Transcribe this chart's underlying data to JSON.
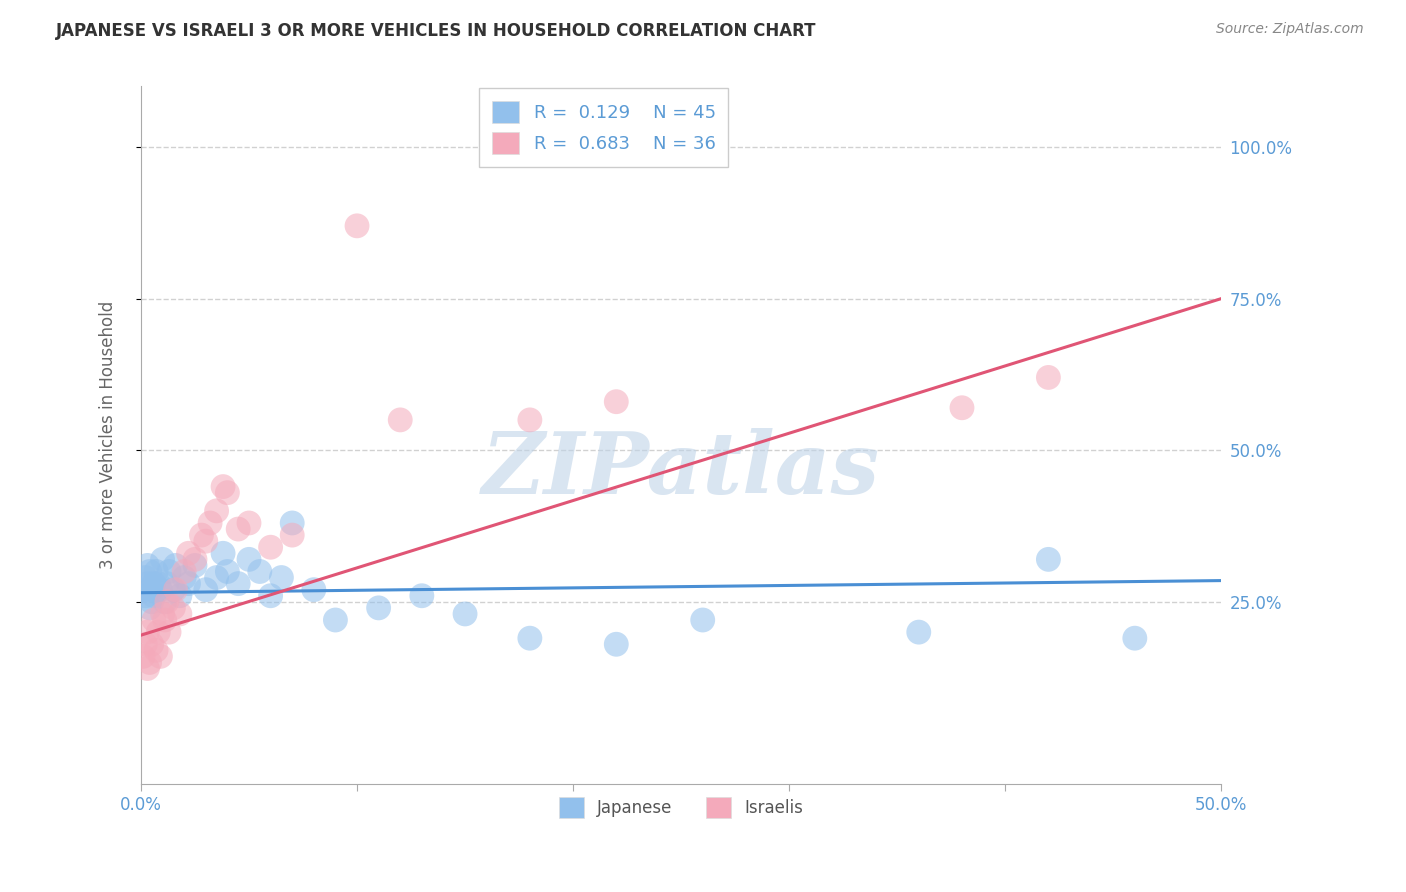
{
  "title": "JAPANESE VS ISRAELI 3 OR MORE VEHICLES IN HOUSEHOLD CORRELATION CHART",
  "source": "Source: ZipAtlas.com",
  "ylabel": "3 or more Vehicles in Household",
  "xlim": [
    0.0,
    0.5
  ],
  "ylim_low": -0.05,
  "ylim_high": 1.1,
  "xticks": [
    0.0,
    0.1,
    0.2,
    0.3,
    0.4,
    0.5
  ],
  "xticklabels": [
    "0.0%",
    "",
    "",
    "",
    "",
    "50.0%"
  ],
  "yticks_right": [
    0.25,
    0.5,
    0.75,
    1.0
  ],
  "yticklabels_right": [
    "25.0%",
    "50.0%",
    "75.0%",
    "100.0%"
  ],
  "blue_color": "#92C0EC",
  "pink_color": "#F4AABB",
  "line_blue": "#4A8FD4",
  "line_pink": "#E05575",
  "legend_R_blue": "0.129",
  "legend_N_blue": "45",
  "legend_R_pink": "0.683",
  "legend_N_pink": "36",
  "watermark": "ZIPatlas",
  "watermark_color": "#C0D4E8",
  "background_color": "#FFFFFF",
  "grid_color": "#CCCCCC",
  "title_color": "#333333",
  "source_color": "#888888",
  "tick_color": "#5B9BD5",
  "jap_line_x": [
    0.0,
    0.5
  ],
  "jap_line_y": [
    0.265,
    0.285
  ],
  "isr_line_x": [
    0.0,
    0.5
  ],
  "isr_line_y": [
    0.195,
    0.75
  ],
  "japanese_x": [
    0.001,
    0.002,
    0.002,
    0.003,
    0.003,
    0.004,
    0.004,
    0.005,
    0.005,
    0.006,
    0.006,
    0.007,
    0.008,
    0.009,
    0.01,
    0.011,
    0.012,
    0.013,
    0.015,
    0.016,
    0.018,
    0.02,
    0.022,
    0.025,
    0.03,
    0.035,
    0.038,
    0.04,
    0.045,
    0.05,
    0.055,
    0.06,
    0.065,
    0.07,
    0.08,
    0.09,
    0.11,
    0.13,
    0.15,
    0.18,
    0.22,
    0.26,
    0.36,
    0.42,
    0.46
  ],
  "japanese_y": [
    0.27,
    0.29,
    0.26,
    0.28,
    0.31,
    0.24,
    0.3,
    0.27,
    0.25,
    0.28,
    0.26,
    0.3,
    0.28,
    0.27,
    0.32,
    0.25,
    0.28,
    0.3,
    0.27,
    0.31,
    0.26,
    0.29,
    0.28,
    0.31,
    0.27,
    0.29,
    0.33,
    0.3,
    0.28,
    0.32,
    0.3,
    0.26,
    0.29,
    0.38,
    0.27,
    0.22,
    0.24,
    0.26,
    0.23,
    0.19,
    0.18,
    0.22,
    0.2,
    0.32,
    0.19
  ],
  "israeli_x": [
    0.001,
    0.002,
    0.003,
    0.003,
    0.004,
    0.005,
    0.006,
    0.007,
    0.008,
    0.009,
    0.01,
    0.011,
    0.012,
    0.013,
    0.015,
    0.016,
    0.018,
    0.02,
    0.022,
    0.025,
    0.028,
    0.03,
    0.032,
    0.035,
    0.038,
    0.04,
    0.045,
    0.05,
    0.06,
    0.07,
    0.1,
    0.12,
    0.18,
    0.22,
    0.38,
    0.42
  ],
  "israeli_y": [
    0.16,
    0.18,
    0.14,
    0.2,
    0.15,
    0.18,
    0.22,
    0.17,
    0.2,
    0.16,
    0.23,
    0.22,
    0.25,
    0.2,
    0.24,
    0.27,
    0.23,
    0.3,
    0.33,
    0.32,
    0.36,
    0.35,
    0.38,
    0.4,
    0.44,
    0.43,
    0.37,
    0.38,
    0.34,
    0.36,
    0.87,
    0.55,
    0.55,
    0.58,
    0.57,
    0.62
  ]
}
